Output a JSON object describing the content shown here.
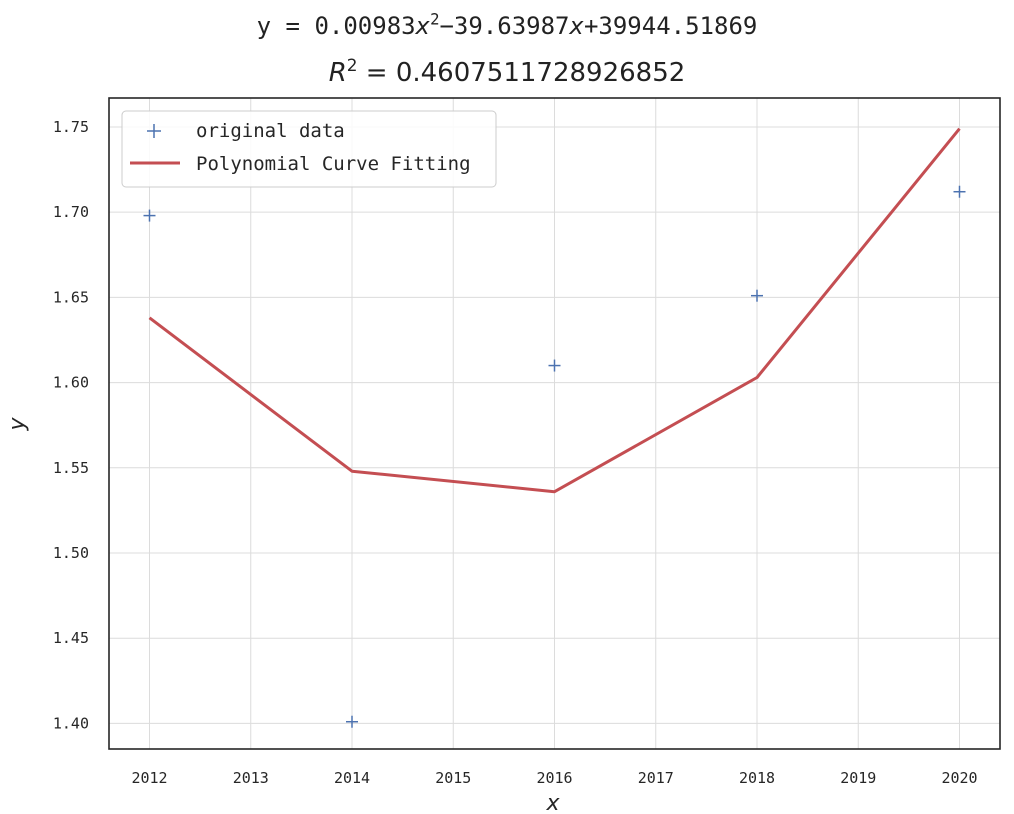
{
  "title": {
    "eq_prefix": "y = 0.00983",
    "eq_x2": "x",
    "eq_exp2": "2",
    "eq_mid": "−39.63987",
    "eq_x1": "x",
    "eq_tail": "+39944.51869",
    "r2_symbol": "R",
    "r2_exp": "2",
    "r2_value": " = 0.4607511728926852"
  },
  "chart_data": {
    "type": "scatter+line",
    "xlabel": "x",
    "ylabel": "y",
    "xlim": [
      2011.6,
      2020.4
    ],
    "ylim": [
      1.385,
      1.767
    ],
    "x_ticks": [
      "2012",
      "2013",
      "2014",
      "2015",
      "2016",
      "2017",
      "2018",
      "2019",
      "2020"
    ],
    "y_ticks": [
      "1.40",
      "1.45",
      "1.50",
      "1.55",
      "1.60",
      "1.65",
      "1.70",
      "1.75"
    ],
    "grid": true,
    "legend_position": "upper-left",
    "series": [
      {
        "name": "original data",
        "kind": "scatter",
        "marker": "+",
        "color": "#4c72b0",
        "x": [
          2012,
          2014,
          2016,
          2018,
          2020
        ],
        "y": [
          1.698,
          1.401,
          1.61,
          1.651,
          1.712
        ]
      },
      {
        "name": "Polynomial Curve Fitting",
        "kind": "line",
        "color": "#c44e52",
        "x": [
          2012,
          2014,
          2016,
          2018,
          2020
        ],
        "y": [
          1.638,
          1.548,
          1.536,
          1.603,
          1.749
        ]
      }
    ]
  }
}
